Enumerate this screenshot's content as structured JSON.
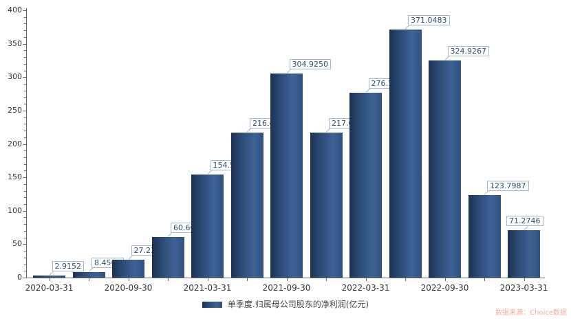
{
  "chart_data": {
    "type": "bar",
    "title": "",
    "x_tick_labels": [
      "2020-03-31",
      "2020-09-30",
      "2021-03-31",
      "2021-09-30",
      "2022-03-31",
      "2022-09-30",
      "2023-03-31"
    ],
    "x_label_every": 2,
    "values": [
      2.9152,
      8.4564,
      27.23,
      60.6694,
      154.5233,
      216.4551,
      304.925,
      217.058,
      276.1737,
      371.0483,
      324.9267,
      123.7987,
      71.2746
    ],
    "value_label_decimals": 4,
    "y_ticks": [
      0,
      50,
      100,
      150,
      200,
      250,
      300,
      350,
      400
    ],
    "y_minor_step": 10,
    "ylim": [
      0,
      400
    ],
    "grid": false,
    "legend": {
      "label": "单季度.归属母公司股东的净利润(亿元)",
      "position": "bottom"
    },
    "colors": {
      "bar_gradient": [
        "#1b3153",
        "#2c4a74",
        "#3d6295",
        "#2f527f"
      ],
      "axis": "#666666",
      "tick_label": "#333333",
      "value_label_text": "#2d4e74",
      "value_label_border": "#a3b8cb",
      "legend_text": "#444444"
    }
  },
  "watermark": {
    "text": "数据来源：Choice数据",
    "color": "#f0ad96"
  }
}
